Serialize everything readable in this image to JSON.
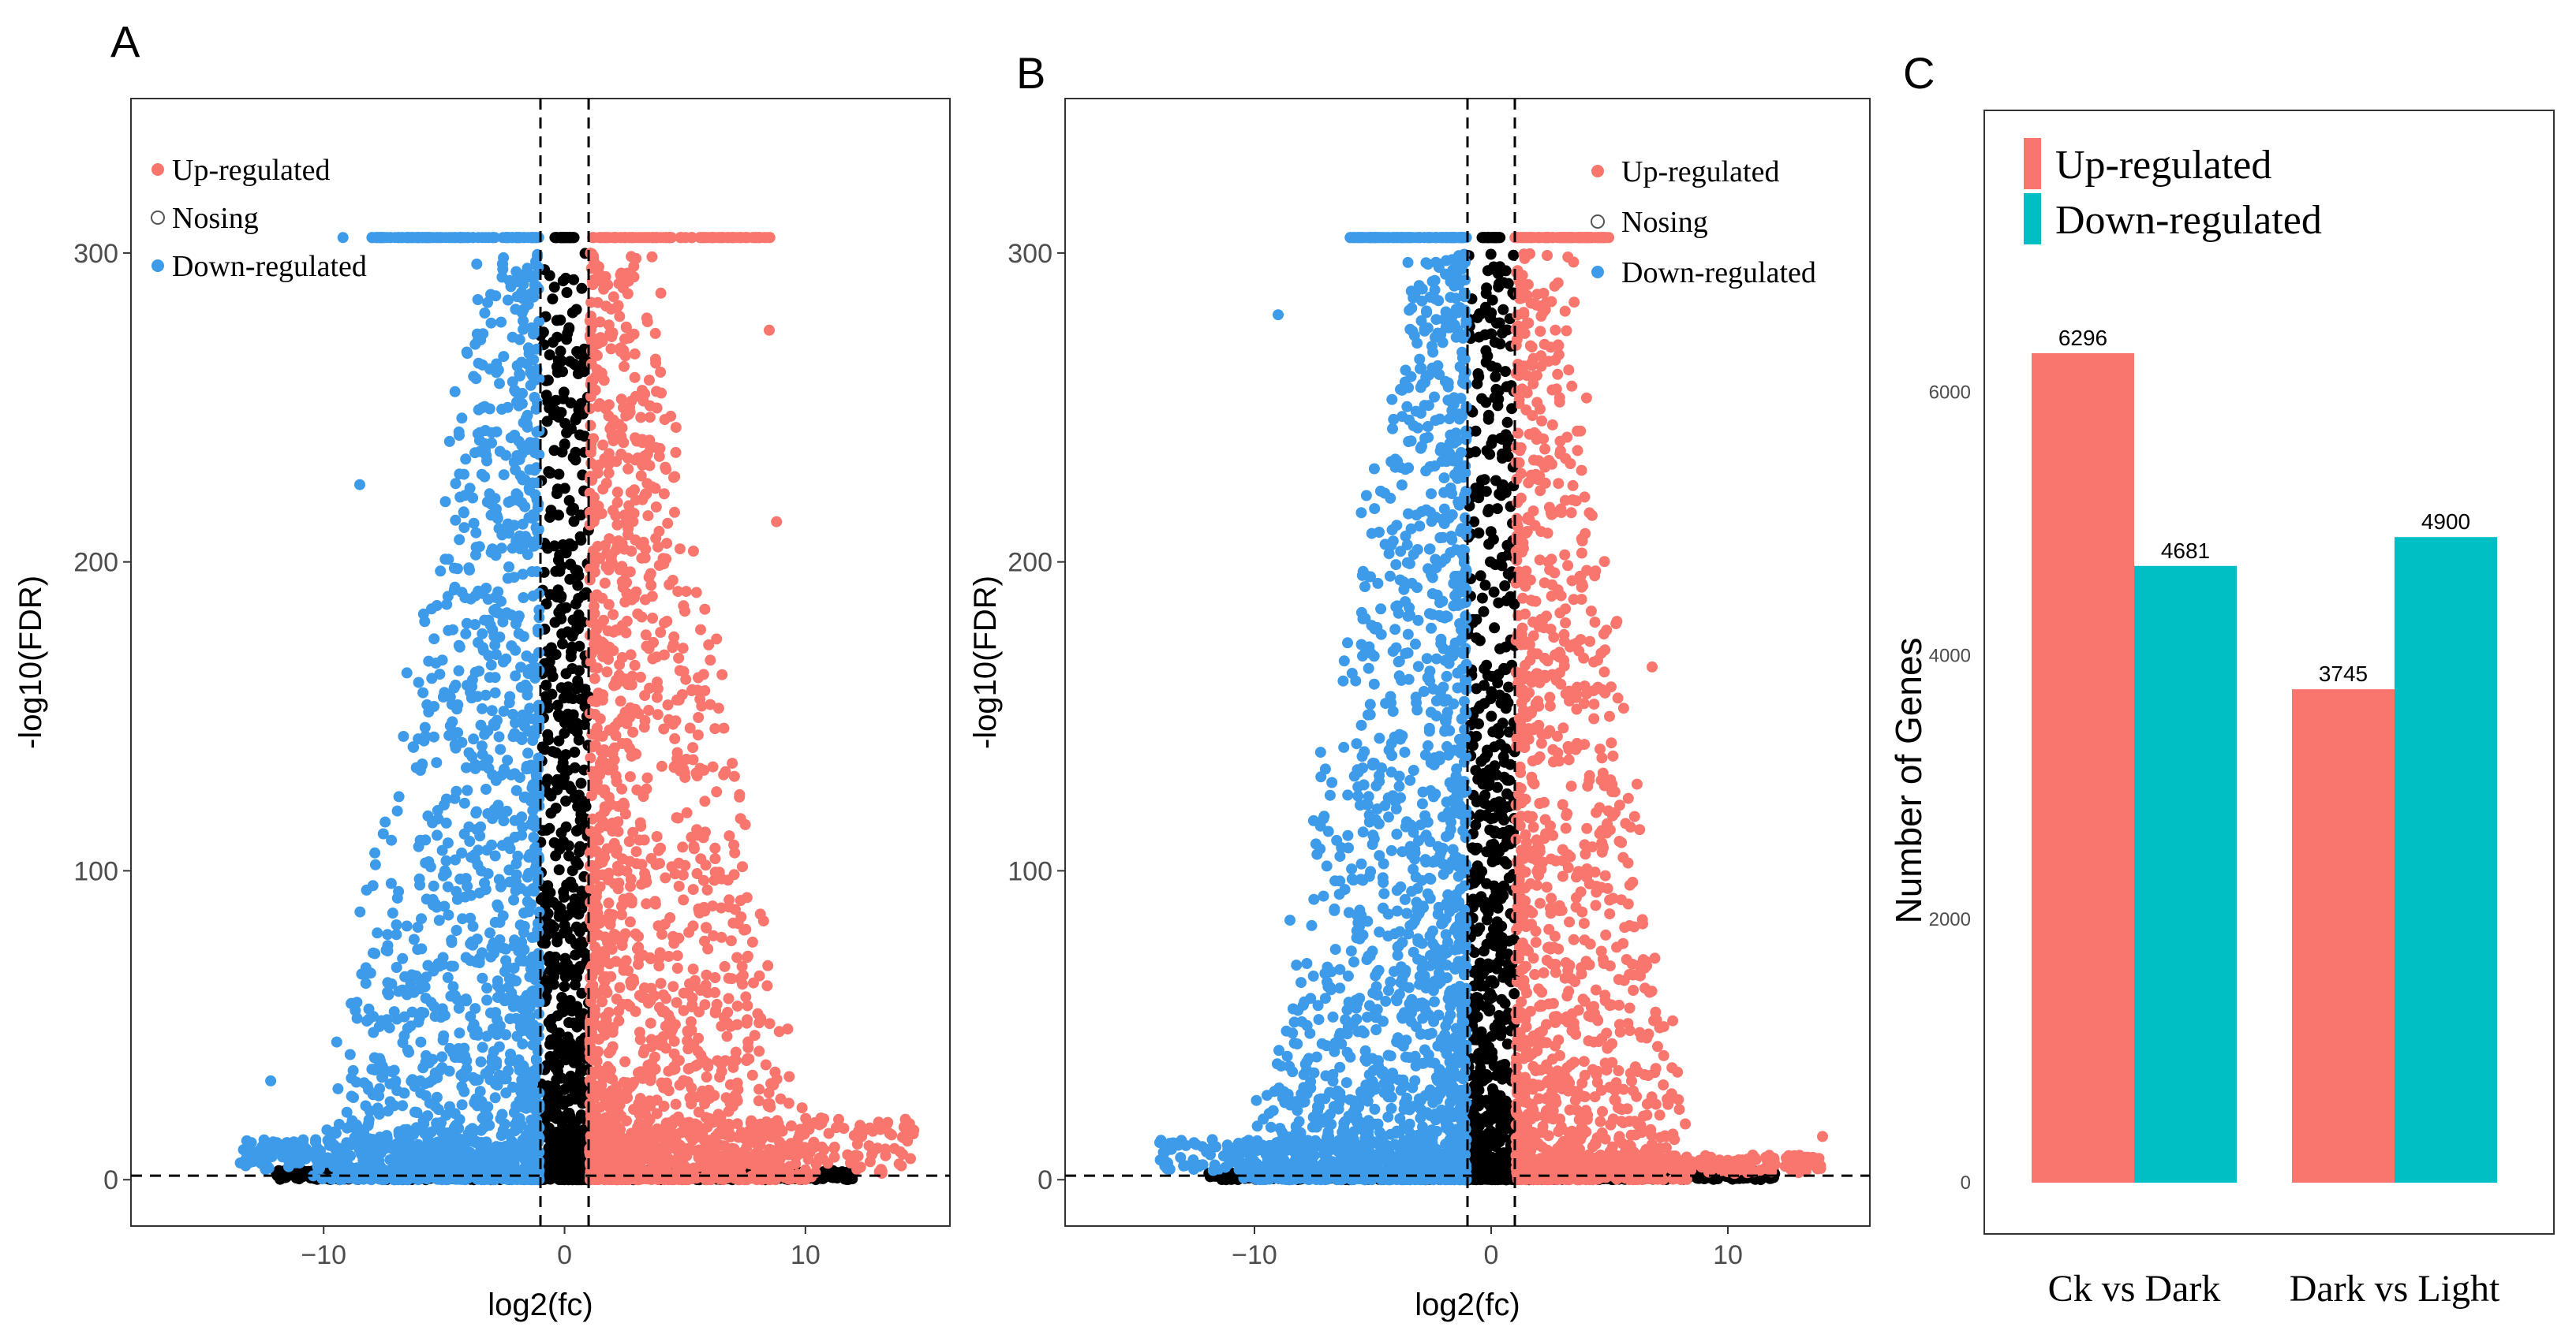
{
  "chart_data": [
    {
      "panel": "A",
      "type": "scatter",
      "xlabel": "log2(fc)",
      "ylabel": "-log10(FDR)",
      "xlim": [
        -18,
        16
      ],
      "ylim": [
        -15,
        350
      ],
      "xticks": [
        -10,
        0,
        10
      ],
      "yticks": [
        0,
        100,
        200,
        300
      ],
      "thresholds": {
        "log2fc": [
          -1,
          1
        ],
        "neg_log10_fdr": 1.3
      },
      "legend": {
        "placement": "top-left",
        "entries": [
          "Up-regulated",
          "Nosing",
          "Down-regulated"
        ]
      },
      "colors": {
        "Up-regulated": "#f8766d",
        "Nosing": "#000000",
        "Down-regulated": "#3d9be9"
      },
      "series": [
        {
          "name": "Up-regulated",
          "count": 6296,
          "x_range": [
            1,
            14.5
          ],
          "y_max": 305
        },
        {
          "name": "Nosing",
          "x_range": [
            -12,
            12
          ],
          "y_max": 305
        },
        {
          "name": "Down-regulated",
          "count": 4681,
          "x_range": [
            -13.5,
            -1
          ],
          "y_max": 305
        }
      ],
      "notable_points": [
        {
          "series": "Up-regulated",
          "x": 8.5,
          "y": 275
        },
        {
          "series": "Up-regulated",
          "x": 8.8,
          "y": 213
        },
        {
          "series": "Up-regulated",
          "x": 4,
          "y": 287
        },
        {
          "series": "Up-regulated",
          "x": 14.5,
          "y": 16
        },
        {
          "series": "Down-regulated",
          "x": -8.5,
          "y": 225
        },
        {
          "series": "Down-regulated",
          "x": -12.2,
          "y": 32
        },
        {
          "series": "Down-regulated",
          "x": -13,
          "y": 12
        },
        {
          "series": "Down-regulated",
          "x": -9.2,
          "y": 305
        }
      ]
    },
    {
      "panel": "B",
      "type": "scatter",
      "xlabel": "log2(fc)",
      "ylabel": "-log10(FDR)",
      "xlim": [
        -18,
        16
      ],
      "ylim": [
        -15,
        350
      ],
      "xticks": [
        -10,
        0,
        10
      ],
      "yticks": [
        0,
        100,
        200,
        300
      ],
      "thresholds": {
        "log2fc": [
          -1,
          1
        ],
        "neg_log10_fdr": 1.3
      },
      "legend": {
        "placement": "top-right",
        "entries": [
          "Up-regulated",
          "Nosing",
          "Down-regulated"
        ]
      },
      "colors": {
        "Up-regulated": "#f8766d",
        "Nosing": "#000000",
        "Down-regulated": "#3d9be9"
      },
      "series": [
        {
          "name": "Up-regulated",
          "count": 3745,
          "x_range": [
            1,
            14
          ],
          "y_max": 305
        },
        {
          "name": "Nosing",
          "x_range": [
            -12,
            12
          ],
          "y_max": 305
        },
        {
          "name": "Down-regulated",
          "count": 4900,
          "x_range": [
            -14,
            -1
          ],
          "y_max": 305
        }
      ],
      "notable_points": [
        {
          "series": "Down-regulated",
          "x": -9,
          "y": 280
        },
        {
          "series": "Down-regulated",
          "x": -8.5,
          "y": 84
        },
        {
          "series": "Down-regulated",
          "x": -14,
          "y": 12
        },
        {
          "series": "Up-regulated",
          "x": 6.8,
          "y": 166
        },
        {
          "series": "Up-regulated",
          "x": 5,
          "y": 150
        },
        {
          "series": "Up-regulated",
          "x": 14,
          "y": 14
        },
        {
          "series": "Up-regulated",
          "x": 6.5,
          "y": 62
        }
      ]
    },
    {
      "panel": "C",
      "type": "bar",
      "categories": [
        "Ck vs Dark",
        "Dark vs Light"
      ],
      "series": [
        {
          "name": "Up-regulated",
          "values": [
            6296,
            3745
          ],
          "color": "#f8766d"
        },
        {
          "name": "Down-regulated",
          "values": [
            4681,
            4900
          ],
          "color": "#00bfc4"
        }
      ],
      "ylabel": "Number of Genes",
      "ylim": [
        0,
        7600
      ],
      "yticks": [
        0,
        2000,
        4000,
        6000
      ],
      "legend": {
        "placement": "top-left",
        "entries": [
          "Up-regulated",
          "Down-regulated"
        ]
      },
      "data_labels": [
        "6296",
        "4681",
        "3745",
        "4900"
      ]
    }
  ]
}
